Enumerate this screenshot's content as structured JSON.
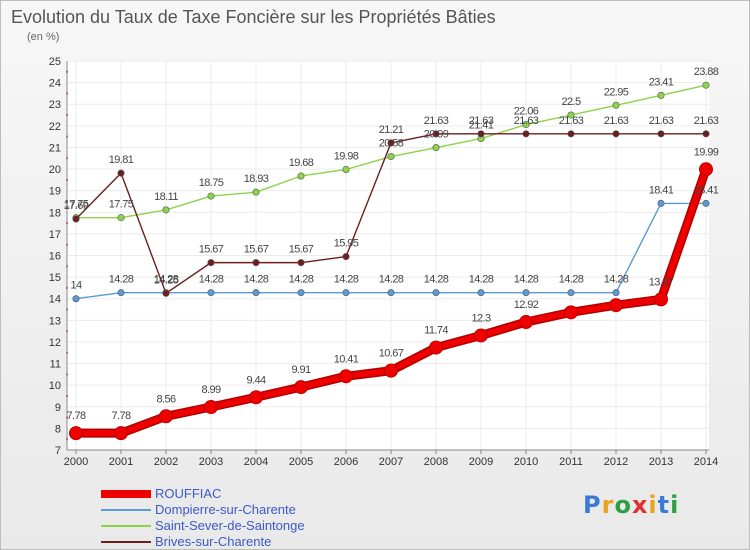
{
  "title": "Evolution du Taux de Taxe Foncière sur les Propriétés Bâties",
  "unit": "(en %)",
  "logo": {
    "text": "Proxiti",
    "colors": [
      "#3a7bd5",
      "#e8a21d",
      "#2f9e44",
      "#e03131",
      "#e8a21d",
      "#3a7bd5",
      "#2f9e44"
    ]
  },
  "chart_data": {
    "type": "line",
    "title": "Evolution du Taux de Taxe Foncière sur les Propriétés Bâties",
    "ylabel": "(en %)",
    "xlabel": "",
    "ylim": [
      7,
      25
    ],
    "yticks": [
      7,
      8,
      9,
      10,
      11,
      12,
      13,
      14,
      15,
      16,
      17,
      18,
      19,
      20,
      21,
      22,
      23,
      24,
      25
    ],
    "grid": true,
    "legend_position": "bottom-left",
    "categories": [
      "2000",
      "2001",
      "2002",
      "2003",
      "2004",
      "2005",
      "2006",
      "2007",
      "2008",
      "2009",
      "2010",
      "2011",
      "2012",
      "2013",
      "2014"
    ],
    "series": [
      {
        "name": "ROUFFIAC",
        "color": "#ee0000",
        "values": [
          7.78,
          7.78,
          8.56,
          8.99,
          9.44,
          9.91,
          10.41,
          10.67,
          11.74,
          12.3,
          12.92,
          13.37,
          13.7,
          13.97,
          19.99
        ],
        "labels": [
          "7.78",
          "7.78",
          "8.56",
          "8.99",
          "9.44",
          "9.91",
          "10.41",
          "10.67",
          "11.74",
          "12.3",
          "12.92",
          "",
          "",
          "13.97",
          "19.99"
        ]
      },
      {
        "name": "Dompierre-sur-Charente",
        "color": "#5a9ad6",
        "values": [
          14,
          14.28,
          14.28,
          14.28,
          14.28,
          14.28,
          14.28,
          14.28,
          14.28,
          14.28,
          14.28,
          14.28,
          14.28,
          18.41,
          18.41
        ],
        "labels": [
          "14",
          "14.28",
          "14.28",
          "14.28",
          "14.28",
          "14.28",
          "14.28",
          "14.28",
          "14.28",
          "14.28",
          "14.28",
          "14.28",
          "14.28",
          "18.41",
          "18.41"
        ]
      },
      {
        "name": "Saint-Sever-de-Saintonge",
        "color": "#8cd44a",
        "values": [
          17.75,
          17.75,
          18.11,
          18.75,
          18.93,
          19.68,
          19.98,
          20.58,
          20.99,
          21.41,
          22.06,
          22.5,
          22.95,
          23.41,
          23.88
        ],
        "labels": [
          "17.75",
          "17.75",
          "18.11",
          "18.75",
          "18.93",
          "19.68",
          "19.98",
          "20.58",
          "20.99",
          "21.41",
          "22.06",
          "22.5",
          "22.95",
          "23.41",
          "23.88"
        ]
      },
      {
        "name": "Brives-sur-Charente",
        "color": "#6b1f1f",
        "values": [
          17.69,
          19.81,
          14.25,
          15.67,
          15.67,
          15.67,
          15.95,
          21.21,
          21.63,
          21.63,
          21.63,
          21.63,
          21.63,
          21.63,
          21.63
        ],
        "labels": [
          "17.69",
          "19.81",
          "14.25",
          "15.67",
          "15.67",
          "15.67",
          "15.95",
          "21.21",
          "21.63",
          "21.63",
          "21.63",
          "21.63",
          "21.63",
          "21.63",
          "21.63"
        ]
      }
    ]
  }
}
